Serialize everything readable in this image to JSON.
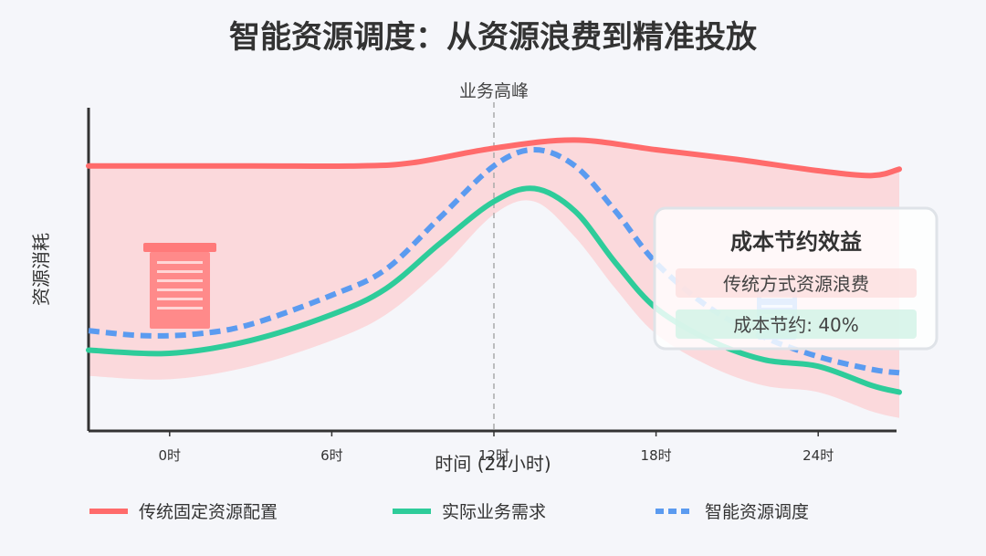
{
  "chart_data": {
    "type": "line",
    "title": "智能资源调度：从资源浪费到精准投放",
    "xlabel": "时间 (24小时)",
    "ylabel": "资源消耗",
    "x_ticks": [
      "0时",
      "6时",
      "12时",
      "18时",
      "24时"
    ],
    "x_tick_values": [
      0,
      6,
      12,
      18,
      24
    ],
    "xlim": [
      -3,
      27
    ],
    "ylim": [
      0,
      100
    ],
    "annotation": {
      "label": "业务高峰",
      "x": 12
    },
    "series": [
      {
        "name": "传统固定资源配置",
        "color": "#ff6b6b",
        "style": "solid",
        "points": [
          [
            -3,
            82
          ],
          [
            3,
            82
          ],
          [
            7,
            82
          ],
          [
            9,
            83
          ],
          [
            12,
            87.5
          ],
          [
            15,
            90
          ],
          [
            18,
            87
          ],
          [
            21,
            84
          ],
          [
            24,
            80.5
          ],
          [
            26,
            79
          ],
          [
            27,
            81
          ]
        ]
      },
      {
        "name": "实际业务需求",
        "color": "#2ecc9a",
        "style": "solid",
        "points": [
          [
            -3,
            25
          ],
          [
            0,
            24
          ],
          [
            3,
            28
          ],
          [
            6,
            36
          ],
          [
            8,
            44
          ],
          [
            10,
            58
          ],
          [
            12,
            71
          ],
          [
            13.5,
            75
          ],
          [
            15,
            68
          ],
          [
            16.5,
            52
          ],
          [
            18,
            38
          ],
          [
            20,
            28
          ],
          [
            22,
            22
          ],
          [
            24,
            20
          ],
          [
            26,
            14
          ],
          [
            27,
            12
          ]
        ]
      },
      {
        "name": "智能资源调度",
        "color": "#5b9bf0",
        "style": "dashed",
        "points": [
          [
            -3,
            31
          ],
          [
            -1,
            29.5
          ],
          [
            1,
            30
          ],
          [
            3,
            33
          ],
          [
            6,
            42
          ],
          [
            8,
            50
          ],
          [
            10,
            66
          ],
          [
            12,
            82
          ],
          [
            13.5,
            87
          ],
          [
            15,
            82
          ],
          [
            16.5,
            68
          ],
          [
            18,
            52
          ],
          [
            20,
            38
          ],
          [
            22,
            29
          ],
          [
            24,
            23
          ],
          [
            26,
            19
          ],
          [
            27,
            18
          ]
        ]
      }
    ],
    "info_card": {
      "title": "成本节约效益",
      "rows": [
        "传统方式资源浪费",
        "成本节约: 40%"
      ],
      "row_colors": [
        "#fde0e1",
        "#d4f3e8"
      ]
    },
    "legend_position": "bottom",
    "grid": false,
    "icons": [
      "server-rack-icon",
      "efficient-server-icon"
    ]
  }
}
